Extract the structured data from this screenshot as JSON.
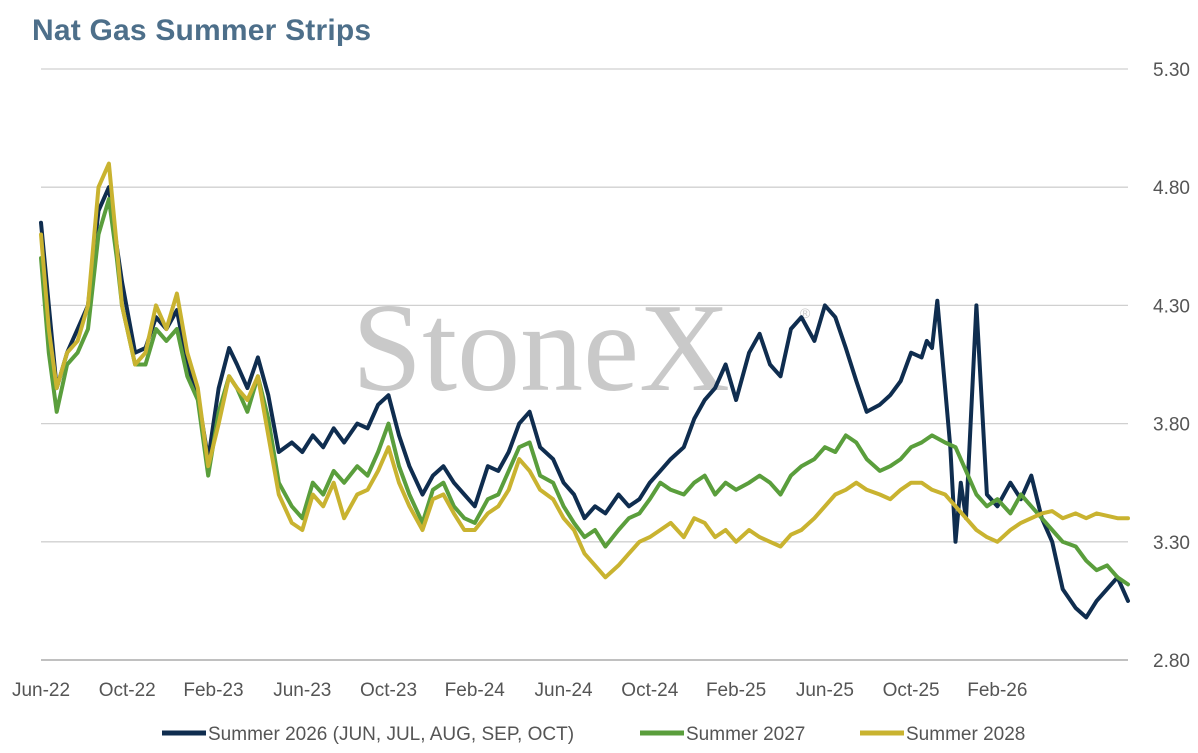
{
  "header": {
    "title": "Nat Gas Summer Strips"
  },
  "watermark": {
    "text": "StoneX",
    "registered": "®"
  },
  "chart_data": {
    "type": "line",
    "title": "Nat Gas Summer Strips",
    "xlabel": "",
    "ylabel": "",
    "ylim": [
      2.8,
      5.3
    ],
    "yticks": [
      "2.80",
      "3.30",
      "3.80",
      "4.30",
      "4.80",
      "5.30"
    ],
    "y_axis_side": "right",
    "xlim": [
      2022.42,
      2026.58
    ],
    "xtick_labels": [
      "Jun-22",
      "Oct-22",
      "Feb-23",
      "Jun-23",
      "Oct-23",
      "Feb-24",
      "Jun-24",
      "Oct-24",
      "Feb-25",
      "Jun-25",
      "Oct-25",
      "Feb-26"
    ],
    "xtick_positions": [
      2022.42,
      2022.75,
      2023.08,
      2023.42,
      2023.75,
      2024.08,
      2024.42,
      2024.75,
      2025.08,
      2025.42,
      2025.75,
      2026.08
    ],
    "grid": "horizontal",
    "legend_position": "bottom",
    "series": [
      {
        "name": "Summer 2026 (JUN, JUL, AUG, SEP, OCT)",
        "color": "#0f2d4f",
        "x": [
          2022.42,
          2022.45,
          2022.48,
          2022.52,
          2022.56,
          2022.6,
          2022.64,
          2022.68,
          2022.71,
          2022.73,
          2022.78,
          2022.82,
          2022.86,
          2022.9,
          2022.94,
          2022.98,
          2023.02,
          2023.06,
          2023.1,
          2023.14,
          2023.17,
          2023.21,
          2023.25,
          2023.29,
          2023.33,
          2023.38,
          2023.42,
          2023.46,
          2023.5,
          2023.54,
          2023.58,
          2023.63,
          2023.67,
          2023.71,
          2023.75,
          2023.79,
          2023.83,
          2023.88,
          2023.92,
          2023.96,
          2024.0,
          2024.04,
          2024.08,
          2024.13,
          2024.17,
          2024.21,
          2024.25,
          2024.29,
          2024.33,
          2024.38,
          2024.42,
          2024.46,
          2024.5,
          2024.54,
          2024.58,
          2024.63,
          2024.67,
          2024.71,
          2024.75,
          2024.79,
          2024.83,
          2024.88,
          2024.92,
          2024.96,
          2025.0,
          2025.04,
          2025.08,
          2025.13,
          2025.17,
          2025.21,
          2025.25,
          2025.29,
          2025.33,
          2025.38,
          2025.42,
          2025.46,
          2025.5,
          2025.54,
          2025.58,
          2025.63,
          2025.67,
          2025.71,
          2025.75,
          2025.79,
          2025.81,
          2025.83,
          2025.85,
          2025.88,
          2025.9,
          2025.92,
          2025.94,
          2025.96,
          2026.0,
          2026.04,
          2026.08,
          2026.13,
          2026.17,
          2026.21,
          2026.25,
          2026.29,
          2026.33,
          2026.38,
          2026.42,
          2026.46,
          2026.5,
          2026.54,
          2026.58
        ],
        "values": [
          4.65,
          4.3,
          3.95,
          4.1,
          4.2,
          4.3,
          4.7,
          4.8,
          4.55,
          4.4,
          4.1,
          4.12,
          4.25,
          4.2,
          4.28,
          4.05,
          3.92,
          3.65,
          3.95,
          4.12,
          4.05,
          3.95,
          4.08,
          3.92,
          3.68,
          3.72,
          3.68,
          3.75,
          3.7,
          3.78,
          3.72,
          3.8,
          3.78,
          3.88,
          3.92,
          3.75,
          3.62,
          3.5,
          3.58,
          3.62,
          3.55,
          3.5,
          3.45,
          3.62,
          3.6,
          3.68,
          3.8,
          3.85,
          3.7,
          3.65,
          3.55,
          3.5,
          3.4,
          3.45,
          3.42,
          3.5,
          3.45,
          3.48,
          3.55,
          3.6,
          3.65,
          3.7,
          3.82,
          3.9,
          3.95,
          4.05,
          3.9,
          4.1,
          4.18,
          4.05,
          4.0,
          4.2,
          4.25,
          4.15,
          4.3,
          4.25,
          4.12,
          3.98,
          3.85,
          3.88,
          3.92,
          3.98,
          4.1,
          4.08,
          4.15,
          4.12,
          4.32,
          3.95,
          3.7,
          3.3,
          3.55,
          3.4,
          4.3,
          3.5,
          3.45,
          3.55,
          3.48,
          3.58,
          3.4,
          3.3,
          3.1,
          3.02,
          2.98,
          3.05,
          3.1,
          3.15,
          3.05
        ]
      },
      {
        "name": "Summer 2027",
        "color": "#5a9e3c",
        "x": [
          2022.42,
          2022.45,
          2022.48,
          2022.52,
          2022.56,
          2022.6,
          2022.64,
          2022.68,
          2022.71,
          2022.73,
          2022.78,
          2022.82,
          2022.86,
          2022.9,
          2022.94,
          2022.98,
          2023.02,
          2023.06,
          2023.1,
          2023.14,
          2023.17,
          2023.21,
          2023.25,
          2023.29,
          2023.33,
          2023.38,
          2023.42,
          2023.46,
          2023.5,
          2023.54,
          2023.58,
          2023.63,
          2023.67,
          2023.71,
          2023.75,
          2023.79,
          2023.83,
          2023.88,
          2023.92,
          2023.96,
          2024.0,
          2024.04,
          2024.08,
          2024.13,
          2024.17,
          2024.21,
          2024.25,
          2024.29,
          2024.33,
          2024.38,
          2024.42,
          2024.46,
          2024.5,
          2024.54,
          2024.58,
          2024.63,
          2024.67,
          2024.71,
          2024.75,
          2024.79,
          2024.83,
          2024.88,
          2024.92,
          2024.96,
          2025.0,
          2025.04,
          2025.08,
          2025.13,
          2025.17,
          2025.21,
          2025.25,
          2025.29,
          2025.33,
          2025.38,
          2025.42,
          2025.46,
          2025.5,
          2025.54,
          2025.58,
          2025.63,
          2025.67,
          2025.71,
          2025.75,
          2025.79,
          2025.83,
          2025.88,
          2025.92,
          2025.96,
          2026.0,
          2026.04,
          2026.08,
          2026.13,
          2026.17,
          2026.21,
          2026.25,
          2026.29,
          2026.33,
          2026.38,
          2026.42,
          2026.46,
          2026.5,
          2026.54,
          2026.58
        ],
        "values": [
          4.5,
          4.1,
          3.85,
          4.05,
          4.1,
          4.2,
          4.6,
          4.75,
          4.5,
          4.3,
          4.05,
          4.05,
          4.2,
          4.15,
          4.2,
          4.0,
          3.9,
          3.58,
          3.85,
          4.0,
          3.95,
          3.85,
          4.0,
          3.82,
          3.55,
          3.45,
          3.4,
          3.55,
          3.5,
          3.6,
          3.55,
          3.62,
          3.58,
          3.68,
          3.8,
          3.62,
          3.5,
          3.38,
          3.52,
          3.55,
          3.45,
          3.4,
          3.38,
          3.48,
          3.5,
          3.6,
          3.7,
          3.72,
          3.58,
          3.55,
          3.45,
          3.38,
          3.32,
          3.35,
          3.28,
          3.35,
          3.4,
          3.42,
          3.48,
          3.55,
          3.52,
          3.5,
          3.55,
          3.58,
          3.5,
          3.55,
          3.52,
          3.55,
          3.58,
          3.55,
          3.5,
          3.58,
          3.62,
          3.65,
          3.7,
          3.68,
          3.75,
          3.72,
          3.65,
          3.6,
          3.62,
          3.65,
          3.7,
          3.72,
          3.75,
          3.72,
          3.7,
          3.6,
          3.5,
          3.45,
          3.48,
          3.42,
          3.5,
          3.45,
          3.4,
          3.35,
          3.3,
          3.28,
          3.22,
          3.18,
          3.2,
          3.15,
          3.12
        ]
      },
      {
        "name": "Summer 2028",
        "color": "#c9b330",
        "x": [
          2022.42,
          2022.45,
          2022.48,
          2022.52,
          2022.56,
          2022.6,
          2022.64,
          2022.68,
          2022.71,
          2022.73,
          2022.78,
          2022.82,
          2022.86,
          2022.9,
          2022.94,
          2022.98,
          2023.02,
          2023.06,
          2023.1,
          2023.14,
          2023.17,
          2023.21,
          2023.25,
          2023.29,
          2023.33,
          2023.38,
          2023.42,
          2023.46,
          2023.5,
          2023.54,
          2023.58,
          2023.63,
          2023.67,
          2023.71,
          2023.75,
          2023.79,
          2023.83,
          2023.88,
          2023.92,
          2023.96,
          2024.0,
          2024.04,
          2024.08,
          2024.13,
          2024.17,
          2024.21,
          2024.25,
          2024.29,
          2024.33,
          2024.38,
          2024.42,
          2024.46,
          2024.5,
          2024.54,
          2024.58,
          2024.63,
          2024.67,
          2024.71,
          2024.75,
          2024.79,
          2024.83,
          2024.88,
          2024.92,
          2024.96,
          2025.0,
          2025.04,
          2025.08,
          2025.13,
          2025.17,
          2025.21,
          2025.25,
          2025.29,
          2025.33,
          2025.38,
          2025.42,
          2025.46,
          2025.5,
          2025.54,
          2025.58,
          2025.63,
          2025.67,
          2025.71,
          2025.75,
          2025.79,
          2025.83,
          2025.88,
          2025.92,
          2025.96,
          2026.0,
          2026.04,
          2026.08,
          2026.13,
          2026.17,
          2026.21,
          2026.25,
          2026.29,
          2026.33,
          2026.38,
          2026.42,
          2026.46,
          2026.5,
          2026.54,
          2026.58
        ],
        "values": [
          4.6,
          4.2,
          3.95,
          4.1,
          4.15,
          4.3,
          4.8,
          4.9,
          4.55,
          4.3,
          4.05,
          4.1,
          4.3,
          4.2,
          4.35,
          4.1,
          3.95,
          3.62,
          3.8,
          4.0,
          3.95,
          3.9,
          4.0,
          3.75,
          3.5,
          3.38,
          3.35,
          3.5,
          3.45,
          3.55,
          3.4,
          3.5,
          3.52,
          3.6,
          3.7,
          3.55,
          3.45,
          3.35,
          3.48,
          3.5,
          3.42,
          3.35,
          3.35,
          3.42,
          3.45,
          3.52,
          3.65,
          3.6,
          3.52,
          3.48,
          3.4,
          3.35,
          3.25,
          3.2,
          3.15,
          3.2,
          3.25,
          3.3,
          3.32,
          3.35,
          3.38,
          3.32,
          3.4,
          3.38,
          3.32,
          3.35,
          3.3,
          3.35,
          3.32,
          3.3,
          3.28,
          3.33,
          3.35,
          3.4,
          3.45,
          3.5,
          3.52,
          3.55,
          3.52,
          3.5,
          3.48,
          3.52,
          3.55,
          3.55,
          3.52,
          3.5,
          3.45,
          3.4,
          3.35,
          3.32,
          3.3,
          3.35,
          3.38,
          3.4,
          3.42,
          3.43,
          3.4,
          3.42,
          3.4,
          3.42,
          3.41,
          3.4,
          3.4
        ]
      }
    ]
  }
}
